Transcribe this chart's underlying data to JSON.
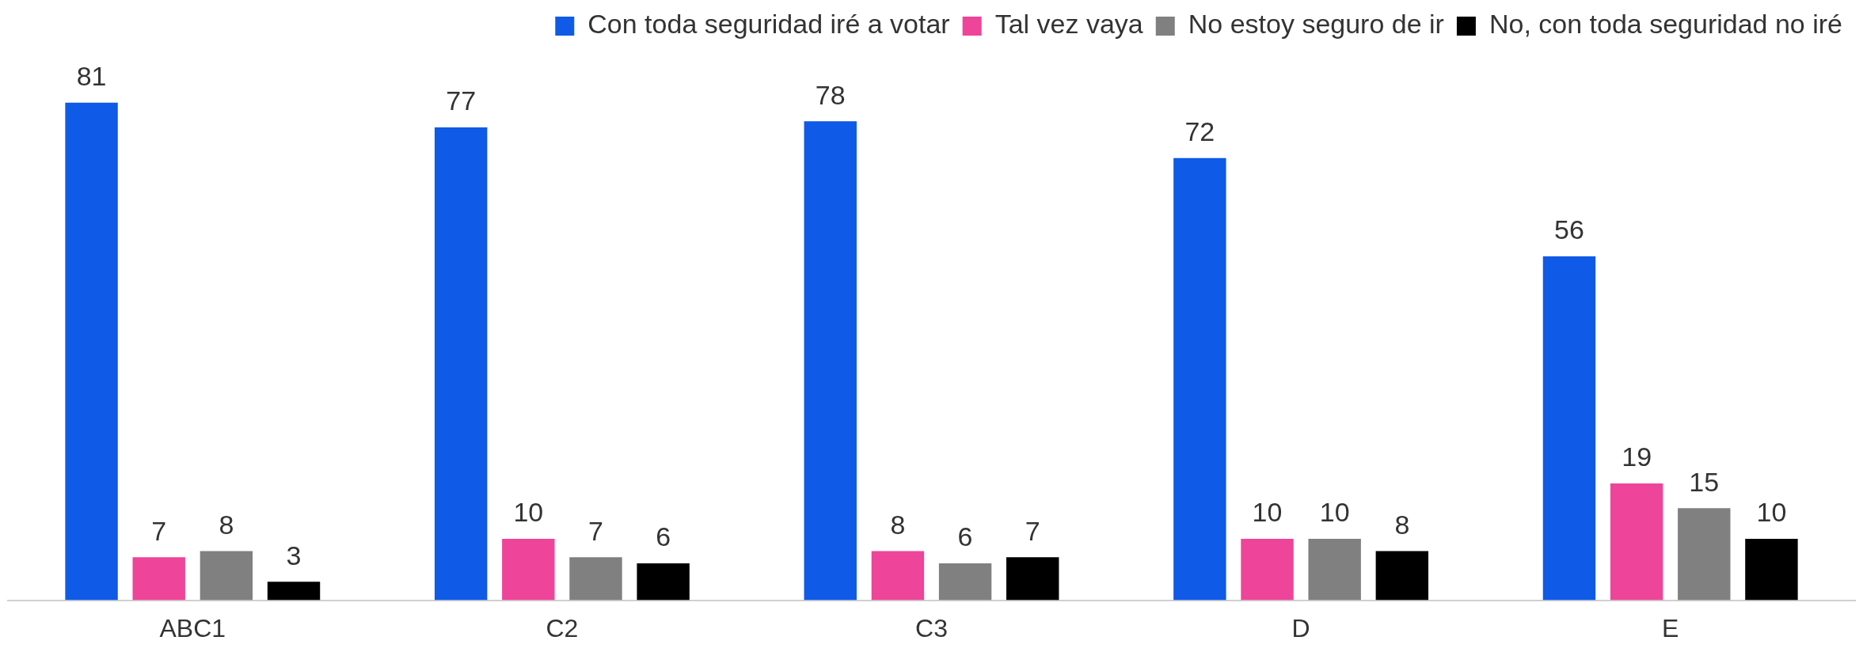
{
  "chart_data": {
    "type": "bar",
    "categories": [
      "ABC1",
      "C2",
      "C3",
      "D",
      "E"
    ],
    "series": [
      {
        "name": "Con toda seguridad iré a votar",
        "color": "#0f5ae6",
        "values": [
          81,
          77,
          78,
          72,
          56
        ]
      },
      {
        "name": "Tal vez vaya",
        "color": "#ee4499",
        "values": [
          7,
          10,
          8,
          10,
          19
        ]
      },
      {
        "name": "No estoy seguro de ir",
        "color": "#808080",
        "values": [
          8,
          7,
          6,
          10,
          15
        ]
      },
      {
        "name": "No, con toda seguridad no iré",
        "color": "#000000",
        "values": [
          3,
          6,
          7,
          8,
          10
        ]
      }
    ],
    "data_labels": true,
    "legend": "top right",
    "grid": false,
    "tick_labels": "x"
  }
}
